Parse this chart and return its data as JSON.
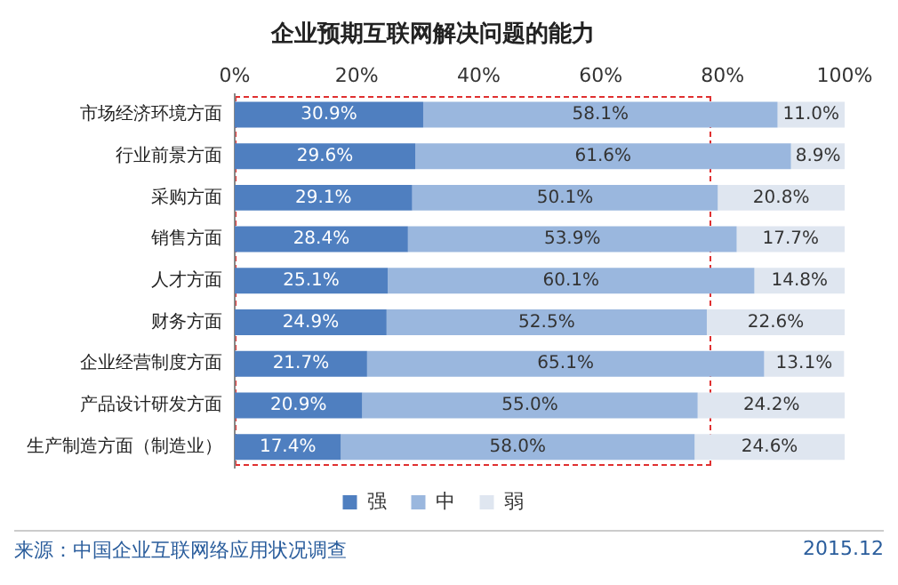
{
  "chart_data": {
    "type": "bar",
    "orientation": "horizontal",
    "stacked": true,
    "title": "企业预期互联网解决问题的能力",
    "categories": [
      "市场经济环境方面",
      "行业前景方面",
      "采购方面",
      "销售方面",
      "人才方面",
      "财务方面",
      "企业经营制度方面",
      "产品设计研发方面",
      "生产制造方面（制造业）"
    ],
    "series": [
      {
        "name": "强",
        "color": "#4f7fc0",
        "values": [
          30.9,
          29.6,
          29.1,
          28.4,
          25.1,
          24.9,
          21.7,
          20.9,
          17.4
        ],
        "value_labels": [
          "30.9%",
          "29.6%",
          "29.1%",
          "28.4%",
          "25.1%",
          "24.9%",
          "21.7%",
          "20.9%",
          "17.4%"
        ]
      },
      {
        "name": "中",
        "color": "#9ab7de",
        "values": [
          58.1,
          61.6,
          50.1,
          53.9,
          60.1,
          52.5,
          65.1,
          55.0,
          58.0
        ],
        "value_labels": [
          "58.1%",
          "61.6%",
          "50.1%",
          "53.9%",
          "60.1%",
          "52.5%",
          "65.1%",
          "55.0%",
          "58.0%"
        ]
      },
      {
        "name": "弱",
        "color": "#dfe6f0",
        "values": [
          11.0,
          8.9,
          20.8,
          17.7,
          14.8,
          22.6,
          13.1,
          24.2,
          24.6
        ],
        "value_labels": [
          "11.0%",
          "8.9%",
          "20.8%",
          "17.7%",
          "14.8%",
          "22.6%",
          "13.1%",
          "24.2%",
          "24.6%"
        ]
      }
    ],
    "xlim": [
      0,
      100
    ],
    "xticks": [
      {
        "value": 0,
        "label": "0%"
      },
      {
        "value": 20,
        "label": "20%"
      },
      {
        "value": 40,
        "label": "40%"
      },
      {
        "value": 60,
        "label": "60%"
      },
      {
        "value": 80,
        "label": "80%"
      },
      {
        "value": 100,
        "label": "100%"
      }
    ],
    "legend": "bottom",
    "annotations": [
      "来源：中国企业互联网络应用状况调查",
      "2015.12"
    ]
  }
}
